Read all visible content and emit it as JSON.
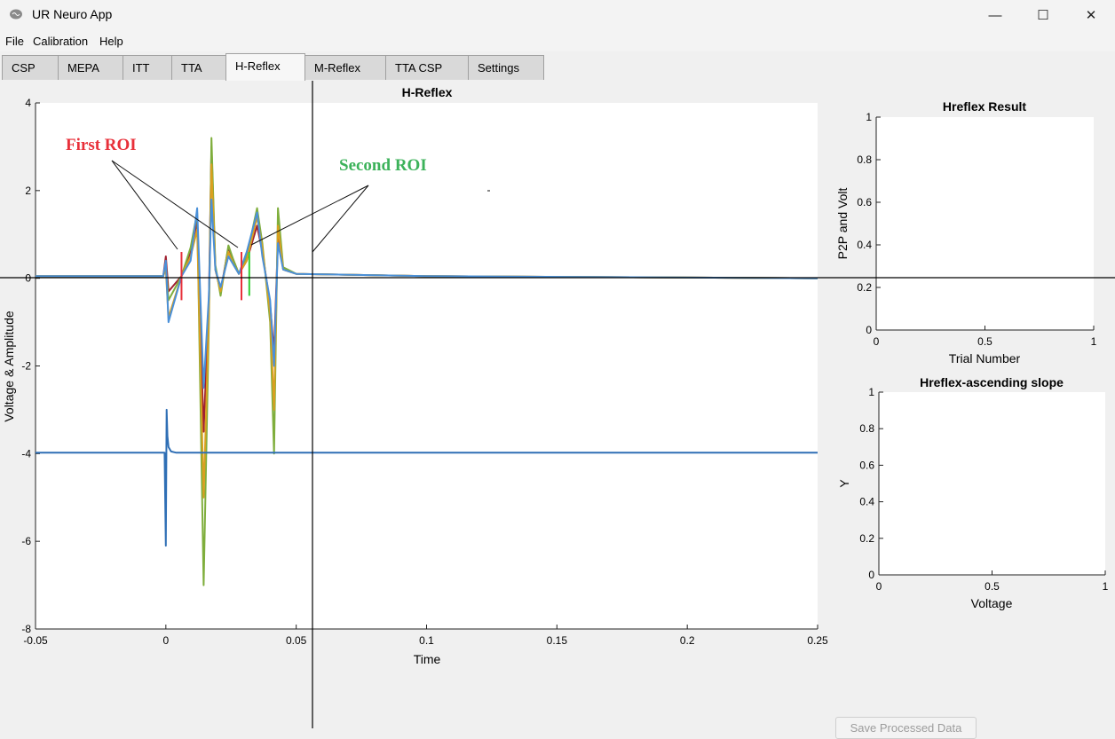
{
  "app": {
    "title": "UR Neuro App"
  },
  "window_controls": {
    "minimize": "—",
    "maximize": "☐",
    "close": "✕"
  },
  "menu": [
    "File",
    "Calibration",
    "Help"
  ],
  "tabs": [
    {
      "label": "CSP",
      "active": false
    },
    {
      "label": "MEPA",
      "active": false
    },
    {
      "label": "ITT",
      "active": false
    },
    {
      "label": "TTA",
      "active": false
    },
    {
      "label": "H-Reflex",
      "active": true
    },
    {
      "label": "M-Reflex",
      "active": false
    },
    {
      "label": "TTA CSP",
      "active": false
    },
    {
      "label": "Settings",
      "active": false
    }
  ],
  "save_button": {
    "label": "Save Processed Data",
    "enabled": false
  },
  "chart_data": [
    {
      "type": "line",
      "title": "H-Reflex",
      "xlabel": "Time",
      "ylabel": "Voltage & Amplitude",
      "xlim": [
        -0.05,
        0.25
      ],
      "ylim": [
        -8,
        4
      ],
      "xticks": [
        "-0.05",
        "0",
        "0.05",
        "0.1",
        "0.15",
        "0.2",
        "0.25"
      ],
      "yticks": [
        "-8",
        "-6",
        "-4",
        "-2",
        "0",
        "2",
        "4"
      ],
      "annotations": [
        {
          "text": "First ROI",
          "color": "#e8303a"
        },
        {
          "text": "Second ROI",
          "color": "#3cb25a"
        }
      ],
      "roi_markers": {
        "first": {
          "color": "#e8303a",
          "x": [
            0.006,
            0.029
          ]
        },
        "second": {
          "color": "#33cc33",
          "x": [
            0.032
          ]
        }
      },
      "series": [
        {
          "color": "#a02030",
          "x": [
            -0.05,
            -0.001,
            0.0,
            0.001,
            0.006,
            0.0095,
            0.012,
            0.0145,
            0.0165,
            0.0175,
            0.019,
            0.021,
            0.024,
            0.026,
            0.028,
            0.031,
            0.035,
            0.037,
            0.04,
            0.0415,
            0.043,
            0.045,
            0.05,
            0.1,
            0.25
          ],
          "y": [
            0.05,
            0.05,
            0.5,
            -0.3,
            0.05,
            0.6,
            1.3,
            -3.5,
            -0.5,
            3.0,
            0.2,
            -0.3,
            0.7,
            0.4,
            0.1,
            0.4,
            1.2,
            0.6,
            -0.6,
            -1.7,
            0.9,
            0.2,
            0.1,
            0.05,
            0.0
          ]
        },
        {
          "color": "#7fae3c",
          "x": [
            -0.05,
            -0.001,
            0.0,
            0.001,
            0.006,
            0.0095,
            0.012,
            0.0145,
            0.0165,
            0.0175,
            0.019,
            0.021,
            0.024,
            0.026,
            0.028,
            0.031,
            0.035,
            0.037,
            0.04,
            0.0415,
            0.043,
            0.045,
            0.05,
            0.1,
            0.25
          ],
          "y": [
            0.05,
            0.05,
            0.3,
            -0.5,
            0.05,
            0.7,
            1.5,
            -7.0,
            -1.0,
            3.2,
            0.3,
            -0.4,
            0.75,
            0.4,
            0.1,
            0.5,
            1.6,
            0.8,
            -1.0,
            -4.0,
            1.6,
            0.25,
            0.1,
            0.05,
            0.0
          ]
        },
        {
          "color": "#d9a020",
          "x": [
            -0.05,
            -0.001,
            0.0,
            0.001,
            0.006,
            0.0095,
            0.012,
            0.0145,
            0.0165,
            0.0175,
            0.019,
            0.021,
            0.024,
            0.026,
            0.028,
            0.031,
            0.035,
            0.037,
            0.04,
            0.0415,
            0.043,
            0.045,
            0.05,
            0.1,
            0.25
          ],
          "y": [
            0.05,
            0.05,
            0.2,
            -0.9,
            0.05,
            0.5,
            1.1,
            -5.0,
            -0.8,
            2.6,
            0.2,
            -0.3,
            0.6,
            0.3,
            0.1,
            0.4,
            1.4,
            0.7,
            -0.8,
            -3.0,
            1.2,
            0.2,
            0.1,
            0.05,
            0.0
          ]
        },
        {
          "color": "#4a90d9",
          "x": [
            -0.05,
            -0.001,
            0.0,
            0.001,
            0.006,
            0.0095,
            0.012,
            0.0145,
            0.0165,
            0.0175,
            0.019,
            0.021,
            0.024,
            0.026,
            0.028,
            0.031,
            0.035,
            0.037,
            0.04,
            0.0415,
            0.043,
            0.045,
            0.05,
            0.1,
            0.25
          ],
          "y": [
            0.05,
            0.05,
            0.4,
            -1.0,
            0.05,
            0.4,
            1.6,
            -2.5,
            -0.4,
            1.8,
            0.2,
            -0.2,
            0.5,
            0.3,
            0.1,
            0.6,
            1.5,
            0.5,
            -0.5,
            -2.0,
            0.8,
            0.2,
            0.1,
            0.05,
            0.0
          ]
        },
        {
          "color": "#2f6fb5",
          "x": [
            -0.05,
            -0.0005,
            0.0,
            0.0003,
            0.0006,
            0.001,
            0.002,
            0.004,
            0.01,
            0.25
          ],
          "y": [
            -3.98,
            -3.98,
            -6.1,
            -3.0,
            -3.6,
            -3.85,
            -3.95,
            -3.98,
            -3.98,
            -3.98
          ]
        }
      ]
    },
    {
      "type": "line",
      "title": "Hreflex Result",
      "xlabel": "Trial Number",
      "ylabel": "P2P and Volt",
      "xlim": [
        0,
        1
      ],
      "ylim": [
        0,
        1
      ],
      "xticks": [
        "0",
        "0.5",
        "1"
      ],
      "yticks": [
        "0",
        "0.2",
        "0.4",
        "0.6",
        "0.8",
        "1"
      ],
      "series": []
    },
    {
      "type": "line",
      "title": "Hreflex-ascending slope",
      "xlabel": "Voltage",
      "ylabel": "Y",
      "xlim": [
        0,
        1
      ],
      "ylim": [
        0,
        1
      ],
      "xticks": [
        "0",
        "0.5",
        "1"
      ],
      "yticks": [
        "0",
        "0.2",
        "0.4",
        "0.6",
        "0.8",
        "1"
      ],
      "series": []
    }
  ]
}
